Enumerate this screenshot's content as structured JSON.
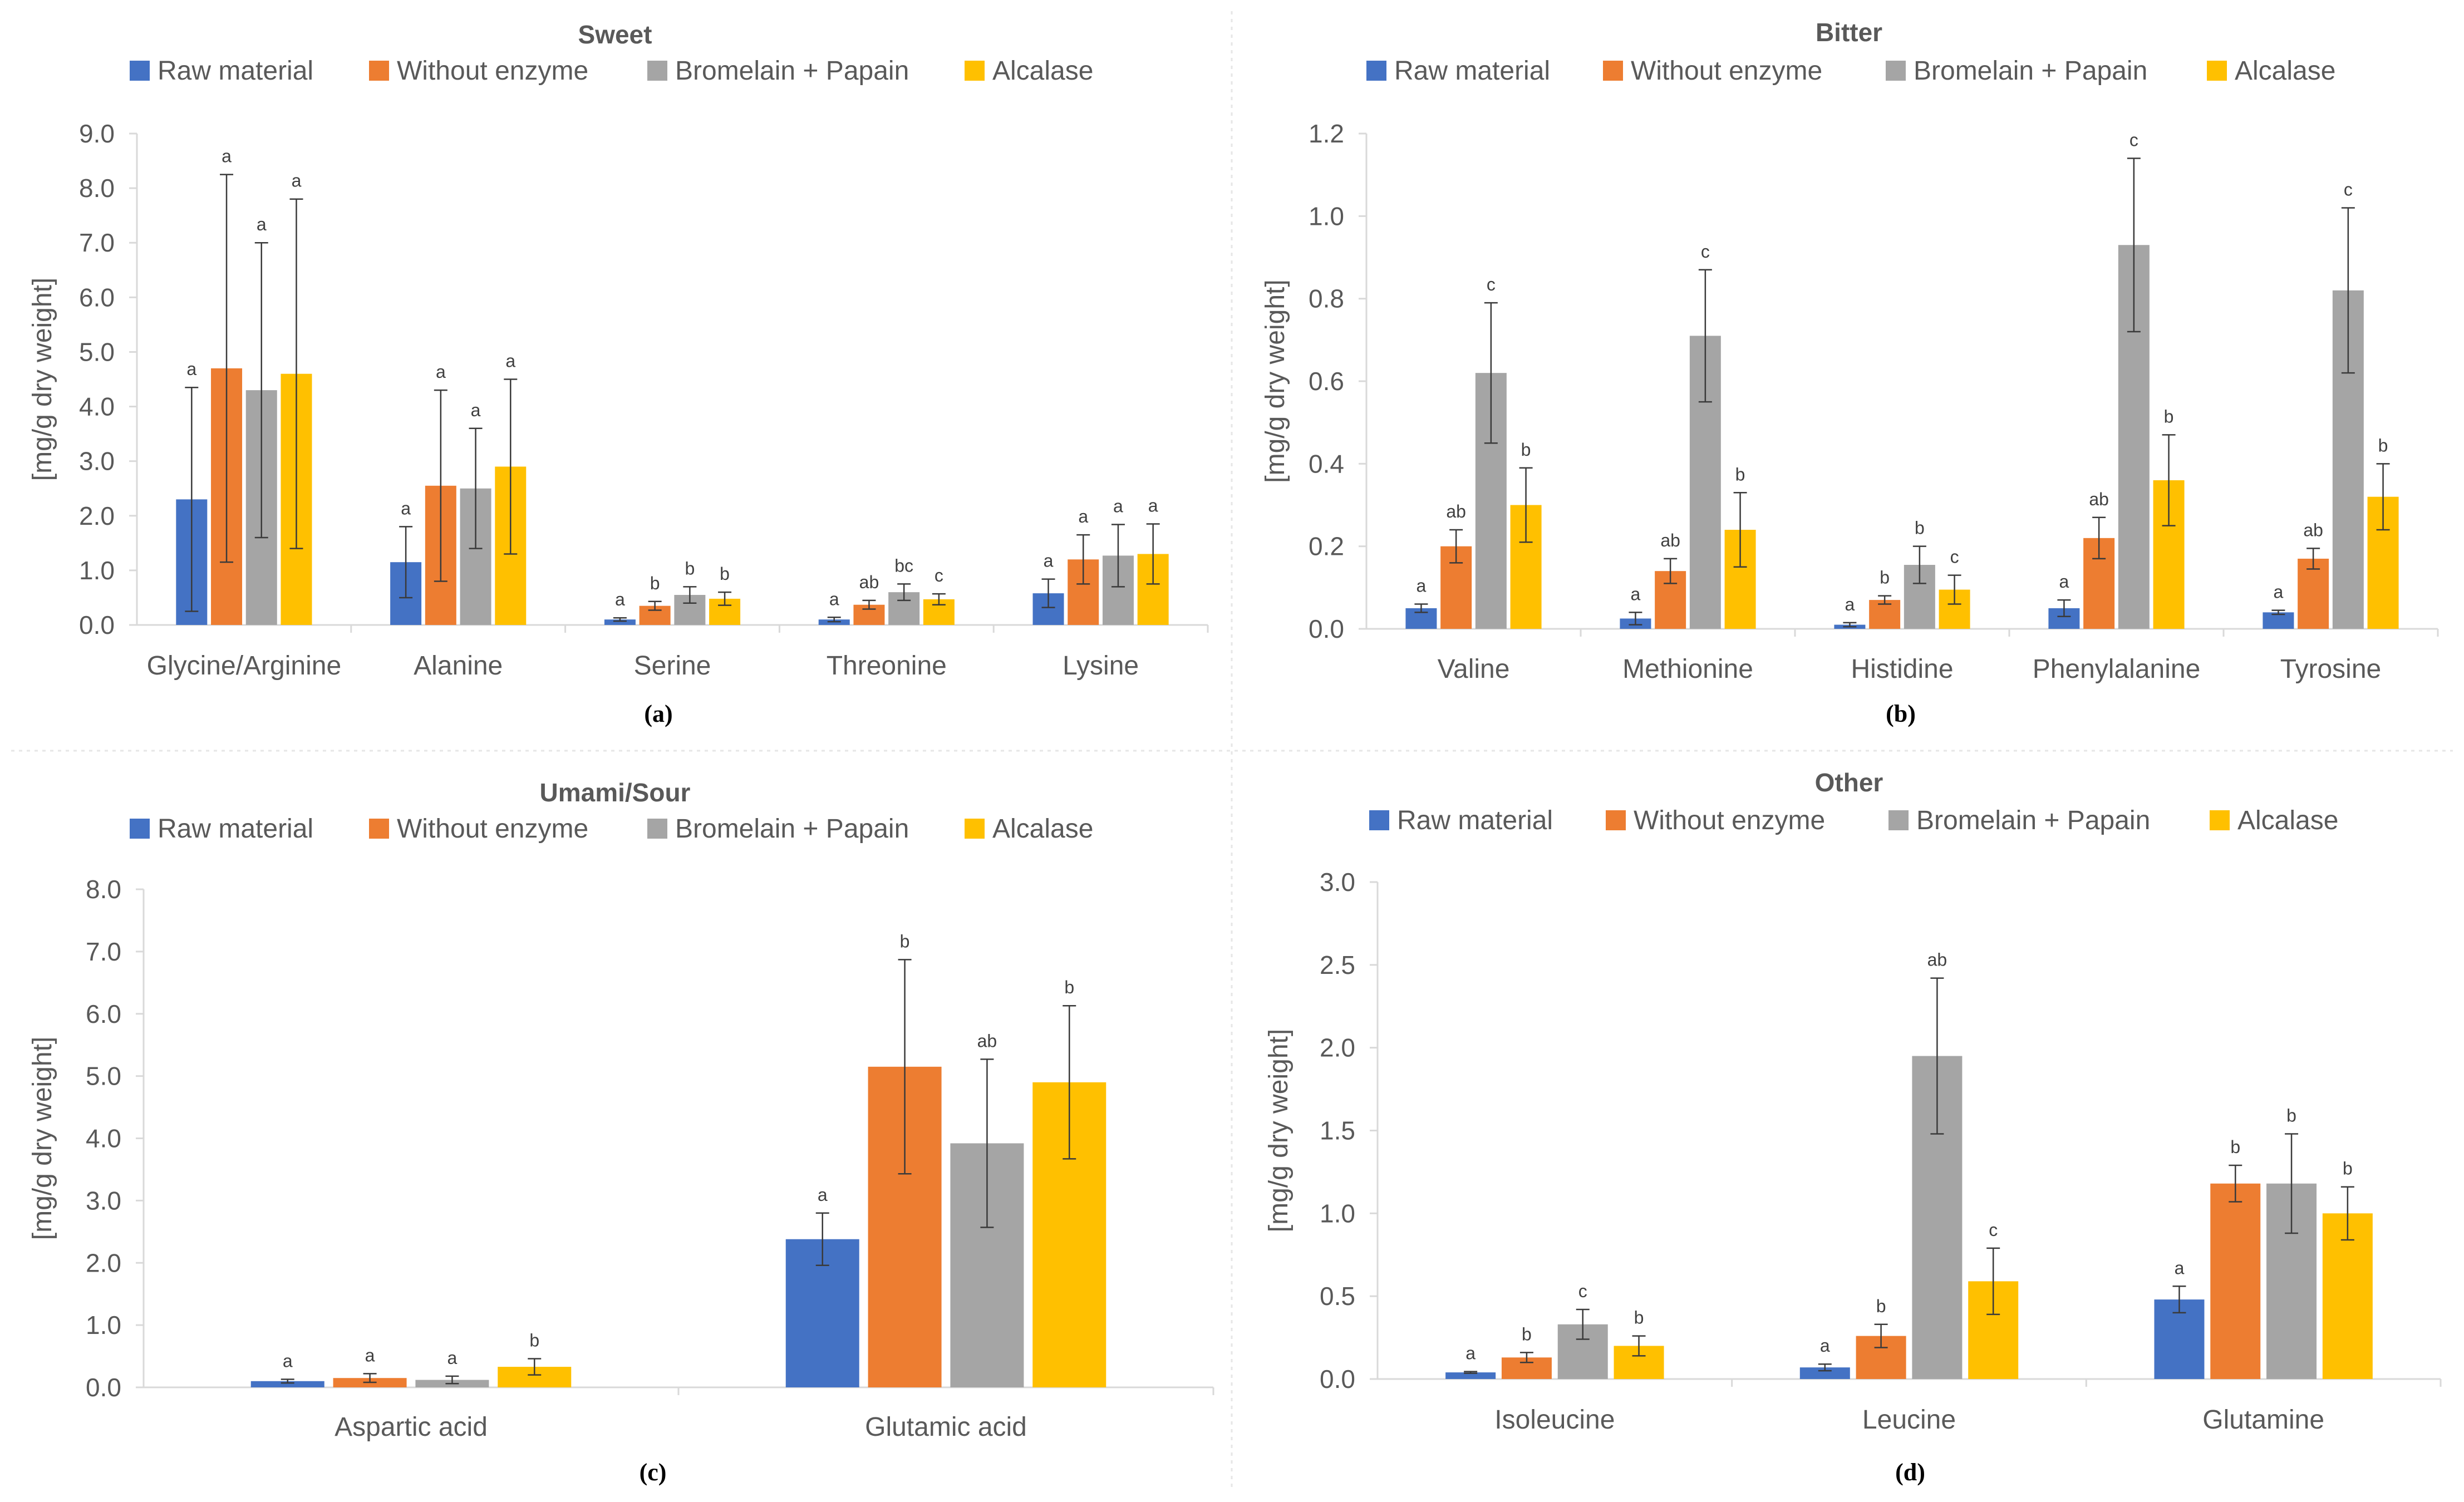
{
  "legend": [
    "Raw material",
    "Without enzyme",
    "Bromelain + Papain",
    "Alcalase"
  ],
  "colors": {
    "Raw material": "#4472C4",
    "Without enzyme": "#ED7D31",
    "Bromelain + Papain": "#A5A5A5",
    "Alcalase": "#FFC000"
  },
  "chart_data": [
    {
      "type": "bar",
      "title": "Sweet",
      "caption": "(a)",
      "ylabel": "[mg/g dry weight]",
      "xlabel": "",
      "ylim": [
        0,
        9
      ],
      "ytick_step": 1,
      "ytick_decimals": 1,
      "categories": [
        "Glycine/Arginine",
        "Alanine",
        "Serine",
        "Threonine",
        "Lysine"
      ],
      "series": [
        {
          "name": "Raw material",
          "values": [
            2.3,
            1.15,
            0.1,
            0.1,
            0.58
          ],
          "errors": [
            2.05,
            0.65,
            0.03,
            0.04,
            0.26
          ],
          "labels": [
            "a",
            "a",
            "a",
            "a",
            "a"
          ]
        },
        {
          "name": "Without enzyme",
          "values": [
            4.7,
            2.55,
            0.35,
            0.37,
            1.2
          ],
          "errors": [
            3.55,
            1.75,
            0.08,
            0.08,
            0.45
          ],
          "labels": [
            "a",
            "a",
            "b",
            "ab",
            "a"
          ]
        },
        {
          "name": "Bromelain + Papain",
          "values": [
            4.3,
            2.5,
            0.55,
            0.6,
            1.27
          ],
          "errors": [
            2.7,
            1.1,
            0.15,
            0.15,
            0.57
          ],
          "labels": [
            "a",
            "a",
            "b",
            "bc",
            "a"
          ]
        },
        {
          "name": "Alcalase",
          "values": [
            4.6,
            2.9,
            0.48,
            0.47,
            1.3
          ],
          "errors": [
            3.2,
            1.6,
            0.12,
            0.1,
            0.55
          ],
          "labels": [
            "a",
            "a",
            "b",
            "c",
            "a"
          ]
        }
      ]
    },
    {
      "type": "bar",
      "title": "Bitter",
      "caption": "(b)",
      "ylabel": "[mg/g dry weight]",
      "xlabel": "",
      "ylim": [
        0,
        1.2
      ],
      "ytick_step": 0.2,
      "ytick_decimals": 1,
      "categories": [
        "Valine",
        "Methionine",
        "Histidine",
        "Phenylalanine",
        "Tyrosine"
      ],
      "series": [
        {
          "name": "Raw material",
          "values": [
            0.05,
            0.025,
            0.01,
            0.05,
            0.04
          ],
          "errors": [
            0.01,
            0.015,
            0.005,
            0.02,
            0.005
          ],
          "labels": [
            "a",
            "a",
            "a",
            "a",
            "a"
          ]
        },
        {
          "name": "Without enzyme",
          "values": [
            0.2,
            0.14,
            0.07,
            0.22,
            0.17
          ],
          "errors": [
            0.04,
            0.03,
            0.01,
            0.05,
            0.025
          ],
          "labels": [
            "ab",
            "ab",
            "b",
            "ab",
            "ab"
          ]
        },
        {
          "name": "Bromelain + Papain",
          "values": [
            0.62,
            0.71,
            0.155,
            0.93,
            0.82
          ],
          "errors": [
            0.17,
            0.16,
            0.045,
            0.21,
            0.2
          ],
          "labels": [
            "c",
            "c",
            "b",
            "c",
            "c"
          ]
        },
        {
          "name": "Alcalase",
          "values": [
            0.3,
            0.24,
            0.095,
            0.36,
            0.32
          ],
          "errors": [
            0.09,
            0.09,
            0.035,
            0.11,
            0.08
          ],
          "labels": [
            "b",
            "b",
            "c",
            "b",
            "b"
          ]
        }
      ]
    },
    {
      "type": "bar",
      "title": "Umami/Sour",
      "caption": "(c)",
      "ylabel": "[mg/g dry weight]",
      "xlabel": "",
      "ylim": [
        0,
        8
      ],
      "ytick_step": 1,
      "ytick_decimals": 1,
      "categories": [
        "Aspartic acid",
        "Glutamic acid"
      ],
      "series": [
        {
          "name": "Raw material",
          "values": [
            0.1,
            2.38
          ],
          "errors": [
            0.03,
            0.42
          ],
          "labels": [
            "a",
            "a"
          ]
        },
        {
          "name": "Without enzyme",
          "values": [
            0.15,
            5.15
          ],
          "errors": [
            0.07,
            1.72
          ],
          "labels": [
            "a",
            "b"
          ]
        },
        {
          "name": "Bromelain + Papain",
          "values": [
            0.12,
            3.92
          ],
          "errors": [
            0.06,
            1.35
          ],
          "labels": [
            "a",
            "ab"
          ]
        },
        {
          "name": "Alcalase",
          "values": [
            0.33,
            4.9
          ],
          "errors": [
            0.13,
            1.23
          ],
          "labels": [
            "b",
            "b"
          ]
        }
      ]
    },
    {
      "type": "bar",
      "title": "Other",
      "caption": "(d)",
      "ylabel": "[mg/g dry weight]",
      "xlabel": "",
      "ylim": [
        0,
        3
      ],
      "ytick_step": 0.5,
      "ytick_decimals": 1,
      "categories": [
        "Isoleucine",
        "Leucine",
        "Glutamine"
      ],
      "series": [
        {
          "name": "Raw material",
          "values": [
            0.04,
            0.07,
            0.48
          ],
          "errors": [
            0.005,
            0.02,
            0.08
          ],
          "labels": [
            "a",
            "a",
            "a"
          ]
        },
        {
          "name": "Without enzyme",
          "values": [
            0.13,
            0.26,
            1.18
          ],
          "errors": [
            0.03,
            0.07,
            0.11
          ],
          "labels": [
            "b",
            "b",
            "b"
          ]
        },
        {
          "name": "Bromelain + Papain",
          "values": [
            0.33,
            1.95,
            1.18
          ],
          "errors": [
            0.09,
            0.47,
            0.3
          ],
          "labels": [
            "c",
            "ab",
            "b"
          ]
        },
        {
          "name": "Alcalase",
          "values": [
            0.2,
            0.59,
            1.0
          ],
          "errors": [
            0.06,
            0.2,
            0.16
          ],
          "labels": [
            "b",
            "c",
            "b"
          ]
        }
      ]
    }
  ]
}
